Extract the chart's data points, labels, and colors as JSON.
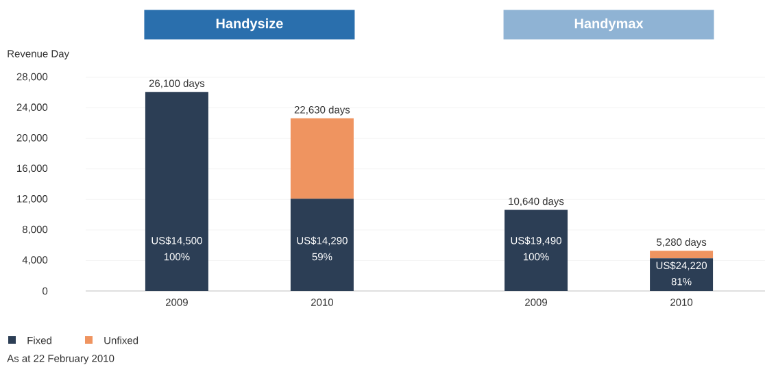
{
  "chart_data": [
    {
      "type": "bar",
      "title": "Handysize",
      "ylabel": "Revenue Day",
      "categories": [
        "2009",
        "2010"
      ],
      "stacked": true,
      "series": [
        {
          "name": "Fixed",
          "color": "#2c3e55",
          "values": [
            26100,
            12100
          ]
        },
        {
          "name": "Unfixed",
          "color": "#ef9460",
          "values": [
            0,
            10530
          ]
        }
      ],
      "totals": [
        "26,100 days",
        "22,630 days"
      ],
      "ylim": [
        0,
        28000
      ],
      "yticks": [
        0,
        {
          "value": 4000,
          "label": "4,000"
        },
        {
          "value": 8000,
          "label": "8,000"
        },
        {
          "value": 12000,
          "label": "12,000"
        },
        {
          "value": 16000,
          "label": "16,000"
        },
        {
          "value": 20000,
          "label": "20,000"
        },
        {
          "value": 24000,
          "label": "24,000"
        },
        {
          "value": 28000,
          "label": "28,000"
        }
      ],
      "grid": "y",
      "legend": "bottom left",
      "annotations": [
        "US$14,500",
        "100%",
        "US$14,290",
        "59%",
        "As at 22 February 2010"
      ]
    },
    {
      "type": "bar",
      "title": "Handymax",
      "categories": [
        "2009",
        "2010"
      ],
      "stacked": true,
      "series": [
        {
          "color": "#2c3e55",
          "values": [
            10640,
            4280
          ]
        },
        {
          "color": "#ef9460",
          "values": [
            0,
            1000
          ]
        }
      ],
      "totals": [
        "10,640 days",
        "5,280 days"
      ],
      "ylim": [
        0,
        28000
      ],
      "yticks": [
        0,
        4000,
        8000,
        12000,
        16000,
        20000,
        24000,
        28000
      ],
      "grid": "y",
      "tick_labels": "x",
      "annotations": [
        "US$19,490",
        "100%",
        "US$24,220",
        "81%"
      ]
    }
  ]
}
